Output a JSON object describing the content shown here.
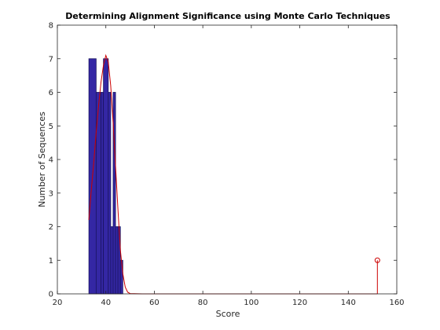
{
  "chart_data": {
    "type": "bar",
    "title": "Determining Alignment Significance using Monte Carlo Techniques",
    "xlabel": "Score",
    "ylabel": "Number of Sequences",
    "xlim": [
      20,
      160
    ],
    "ylim": [
      0,
      8
    ],
    "xticks": [
      20,
      40,
      60,
      80,
      100,
      120,
      140,
      160
    ],
    "yticks": [
      0,
      1,
      2,
      3,
      4,
      5,
      6,
      7,
      8
    ],
    "grid": false,
    "colors": {
      "bar_fill": "#3427a4",
      "bar_edge": "#1a1460",
      "curve": "#cc0000",
      "axis": "#262626"
    },
    "histogram": {
      "bins": [
        {
          "x0": 33,
          "x1": 36,
          "count": 7
        },
        {
          "x0": 36,
          "x1": 38,
          "count": 6
        },
        {
          "x0": 38,
          "x1": 39,
          "count": 6
        },
        {
          "x0": 39,
          "x1": 41,
          "count": 7
        },
        {
          "x0": 41,
          "x1": 42,
          "count": 6
        },
        {
          "x0": 42,
          "x1": 43,
          "count": 2
        },
        {
          "x0": 43,
          "x1": 44,
          "count": 6
        },
        {
          "x0": 44,
          "x1": 45,
          "count": 2
        },
        {
          "x0": 45,
          "x1": 46,
          "count": 2
        },
        {
          "x0": 46,
          "x1": 47,
          "count": 1
        }
      ]
    },
    "fit_curve": {
      "x": [
        33,
        34,
        35,
        36,
        37,
        38,
        39,
        40,
        41,
        42,
        43,
        44,
        45,
        46,
        47,
        48,
        49,
        50,
        55,
        60,
        80,
        100,
        120,
        140,
        150,
        152
      ],
      "y": [
        2.2,
        3.1,
        3.9,
        4.8,
        5.6,
        6.3,
        6.8,
        7.1,
        6.9,
        6.2,
        5.1,
        3.8,
        2.5,
        1.3,
        0.6,
        0.2,
        0.05,
        0.01,
        0,
        0,
        0,
        0,
        0,
        0,
        0,
        0
      ]
    },
    "outlier": {
      "x": 152,
      "y": 1
    }
  }
}
